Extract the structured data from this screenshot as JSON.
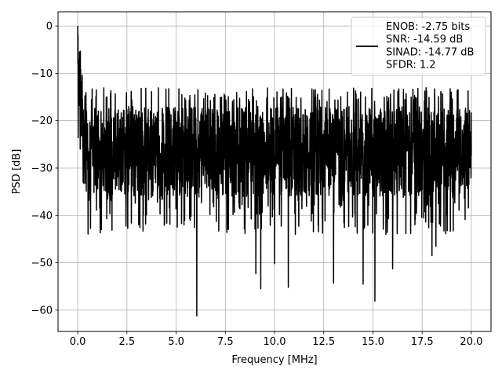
{
  "chart_data": {
    "type": "line",
    "xlabel": "Frequency [MHz]",
    "ylabel": "PSD [dB]",
    "xlim": [
      -1.0,
      21.0
    ],
    "ylim": [
      -64.5,
      3.0
    ],
    "x_ticks": [
      0.0,
      2.5,
      5.0,
      7.5,
      10.0,
      12.5,
      15.0,
      17.5,
      20.0
    ],
    "x_tick_labels": [
      "0.0",
      "2.5",
      "5.0",
      "7.5",
      "10.0",
      "12.5",
      "15.0",
      "17.5",
      "20.0"
    ],
    "y_ticks": [
      0,
      -10,
      -20,
      -30,
      -40,
      -50,
      -60
    ],
    "y_tick_labels": [
      "0",
      "−10",
      "−20",
      "−30",
      "−40",
      "−50",
      "−60"
    ],
    "grid": true,
    "legend_position": "top-right",
    "legend_lines": [
      "ENOB: -2.75 bits",
      "SNR: -14.59 dB",
      "SINAD: -14.77 dB",
      "SFDR: 1.2"
    ],
    "series_color": "#000000",
    "series": [
      {
        "x_range": [
          0.0,
          20.0
        ],
        "peak": {
          "x": 0.0,
          "y": 0.0
        },
        "typical_range": [
          -36,
          -16
        ],
        "notable_minima": [
          {
            "x": 6.05,
            "y": -61.2
          },
          {
            "x": 9.3,
            "y": -55.5
          },
          {
            "x": 10.7,
            "y": -55.2
          },
          {
            "x": 15.1,
            "y": -58.1
          },
          {
            "x": 14.5,
            "y": -54.5
          },
          {
            "x": 13.0,
            "y": -54.3
          },
          {
            "x": 9.05,
            "y": -52.3
          },
          {
            "x": 10.0,
            "y": -50.2
          },
          {
            "x": 16.0,
            "y": -51.3
          },
          {
            "x": 18.0,
            "y": -48.5
          },
          {
            "x": 18.2,
            "y": -46.5
          },
          {
            "x": 1.2,
            "y": -43.0
          }
        ]
      }
    ]
  }
}
